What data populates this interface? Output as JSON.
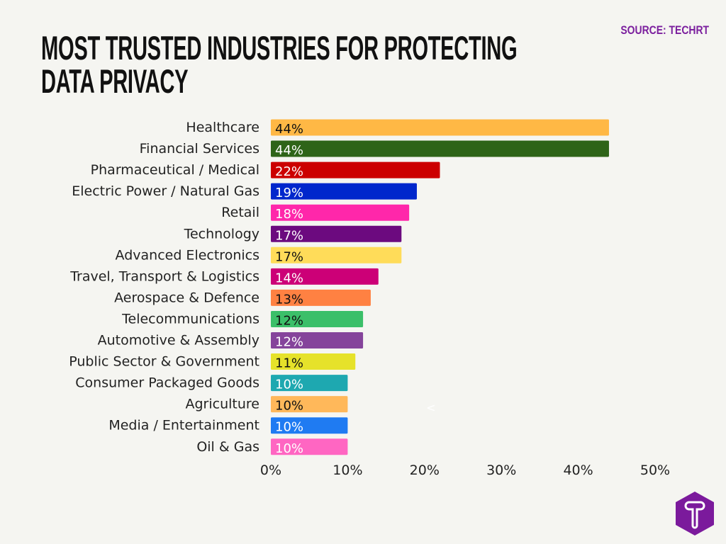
{
  "header": {
    "title": "MOST TRUSTED INDUSTRIES FOR PROTECTING DATA PRIVACY",
    "source": "SOURCE: TECHRT"
  },
  "artifact_text": "<",
  "logo": {
    "letter": "T",
    "color": "#7b1a9c"
  },
  "chart_data": {
    "type": "bar",
    "orientation": "horizontal",
    "title": "MOST TRUSTED INDUSTRIES FOR PROTECTING DATA PRIVACY",
    "xlabel": "",
    "ylabel": "",
    "xlim": [
      0,
      50
    ],
    "x_ticks": [
      "0%",
      "10%",
      "20%",
      "30%",
      "40%",
      "50%"
    ],
    "grid": false,
    "categories": [
      "Healthcare",
      "Financial Services",
      "Pharmaceutical / Medical",
      "Electric Power / Natural Gas",
      "Retail",
      "Technology",
      "Advanced Electronics",
      "Travel, Transport & Logistics",
      "Aerospace & Defence",
      "Telecommunications",
      "Automotive & Assembly",
      "Public Sector & Government",
      "Consumer Packaged Goods",
      "Agriculture",
      "Media / Entertainment",
      "Oil & Gas"
    ],
    "values": [
      44,
      44,
      22,
      19,
      18,
      17,
      17,
      14,
      13,
      12,
      12,
      11,
      10,
      10,
      10,
      10
    ],
    "data_labels": [
      "44%",
      "44%",
      "22%",
      "19%",
      "18%",
      "17%",
      "17%",
      "14%",
      "13%",
      "12%",
      "12%",
      "11%",
      "10%",
      "10%",
      "10%",
      "10%"
    ],
    "colors": [
      "#ffb845",
      "#2e6418",
      "#cc0000",
      "#0027cc",
      "#ff27aa",
      "#6c0a7f",
      "#ffdc59",
      "#cc0077",
      "#ff8142",
      "#3bbf69",
      "#85449b",
      "#e6e22a",
      "#1ea8b0",
      "#ffb85a",
      "#1f7bf2",
      "#ff66c2"
    ],
    "label_colors": [
      "#111",
      "#fff",
      "#fff",
      "#fff",
      "#fff",
      "#fff",
      "#111",
      "#fff",
      "#111",
      "#111",
      "#fff",
      "#111",
      "#fff",
      "#111",
      "#fff",
      "#fff"
    ]
  }
}
